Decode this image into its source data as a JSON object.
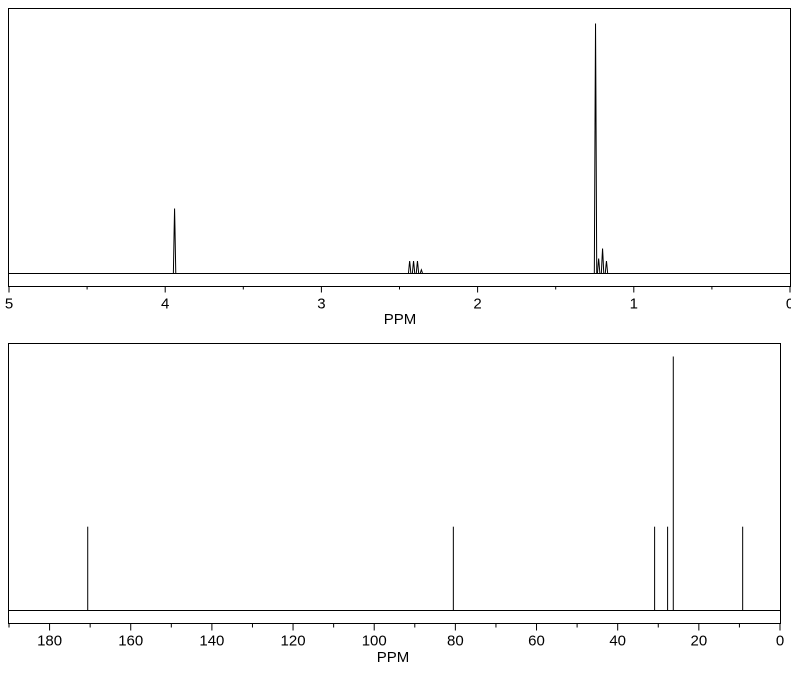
{
  "chart_data": [
    {
      "type": "line",
      "title": "",
      "xlabel": "PPM",
      "ylabel": "",
      "xlim": [
        5,
        0
      ],
      "x_reversed": true,
      "tick_labels": [
        "5",
        "4",
        "3",
        "2",
        "1",
        "0"
      ],
      "tick_values": [
        5,
        4,
        3,
        2,
        1,
        0
      ],
      "grid": false,
      "peaks": [
        {
          "x": 3.94,
          "y": 0.26
        },
        {
          "x": 2.435,
          "y": 0.05
        },
        {
          "x": 2.41,
          "y": 0.05
        },
        {
          "x": 2.385,
          "y": 0.05
        },
        {
          "x": 2.36,
          "y": 0.015
        },
        {
          "x": 1.245,
          "y": 1.0
        },
        {
          "x": 1.225,
          "y": 0.06
        },
        {
          "x": 1.2,
          "y": 0.1
        },
        {
          "x": 1.175,
          "y": 0.05
        }
      ]
    },
    {
      "type": "bar",
      "title": "",
      "xlabel": "PPM",
      "ylabel": "",
      "xlim": [
        190,
        0
      ],
      "x_reversed": true,
      "tick_labels": [
        "180",
        "160",
        "140",
        "120",
        "100",
        "80",
        "60",
        "40",
        "20",
        "0"
      ],
      "tick_values": [
        180,
        160,
        140,
        120,
        100,
        80,
        60,
        40,
        20,
        0
      ],
      "grid": false,
      "peaks": [
        {
          "x": 170.6,
          "y": 0.33
        },
        {
          "x": 80.5,
          "y": 0.33
        },
        {
          "x": 30.9,
          "y": 0.33
        },
        {
          "x": 27.7,
          "y": 0.33
        },
        {
          "x": 26.3,
          "y": 1.0
        },
        {
          "x": 9.2,
          "y": 0.33
        }
      ]
    }
  ]
}
